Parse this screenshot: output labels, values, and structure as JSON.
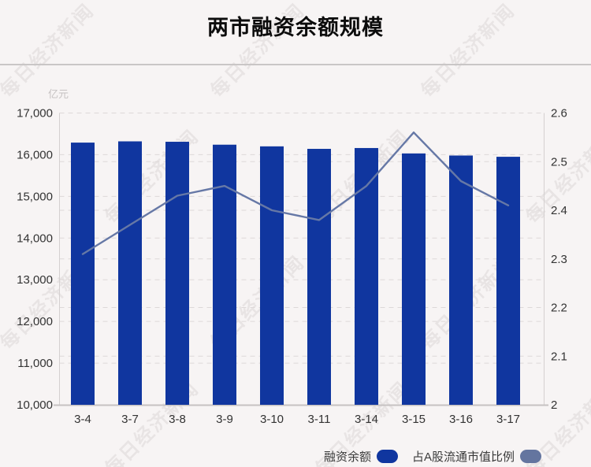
{
  "header": {
    "title": "两市融资余额规模"
  },
  "watermark": {
    "text": "每日经济新闻"
  },
  "chart_data": {
    "type": "bar+line combo",
    "title": "两市融资余额规模",
    "unit_label": "亿元",
    "categories": [
      "3-4",
      "3-7",
      "3-8",
      "3-9",
      "3-10",
      "3-11",
      "3-14",
      "3-15",
      "3-16",
      "3-17"
    ],
    "series": [
      {
        "name": "融资余额",
        "type": "bar",
        "axis": "left",
        "color": "#10369f",
        "values": [
          16290,
          16320,
          16310,
          16240,
          16200,
          16140,
          16160,
          16030,
          15980,
          15950
        ]
      },
      {
        "name": "占A股流通市值比例",
        "type": "line",
        "axis": "right",
        "color": "#6678a6",
        "values": [
          2.31,
          2.37,
          2.43,
          2.45,
          2.4,
          2.38,
          2.45,
          2.56,
          2.46,
          2.41
        ]
      }
    ],
    "left_axis": {
      "min": 10000,
      "max": 17000,
      "step": 1000,
      "tick_labels": [
        "17,000",
        "16,000",
        "15,000",
        "14,000",
        "13,000",
        "12,000",
        "11,000",
        "10,000"
      ]
    },
    "right_axis": {
      "min": 2.0,
      "max": 2.6,
      "step": 0.1,
      "tick_labels": [
        "2.6",
        "2.5",
        "2.4",
        "2.3",
        "2.2",
        "2.1",
        "2"
      ]
    },
    "grid": "dashed horizontal gridlines for both axes",
    "legend_position": "bottom-right"
  },
  "legend": {
    "items": [
      {
        "label": "融资余额",
        "color": "#10369f"
      },
      {
        "label": "占A股流通市值比例",
        "color": "#64759f"
      }
    ]
  }
}
